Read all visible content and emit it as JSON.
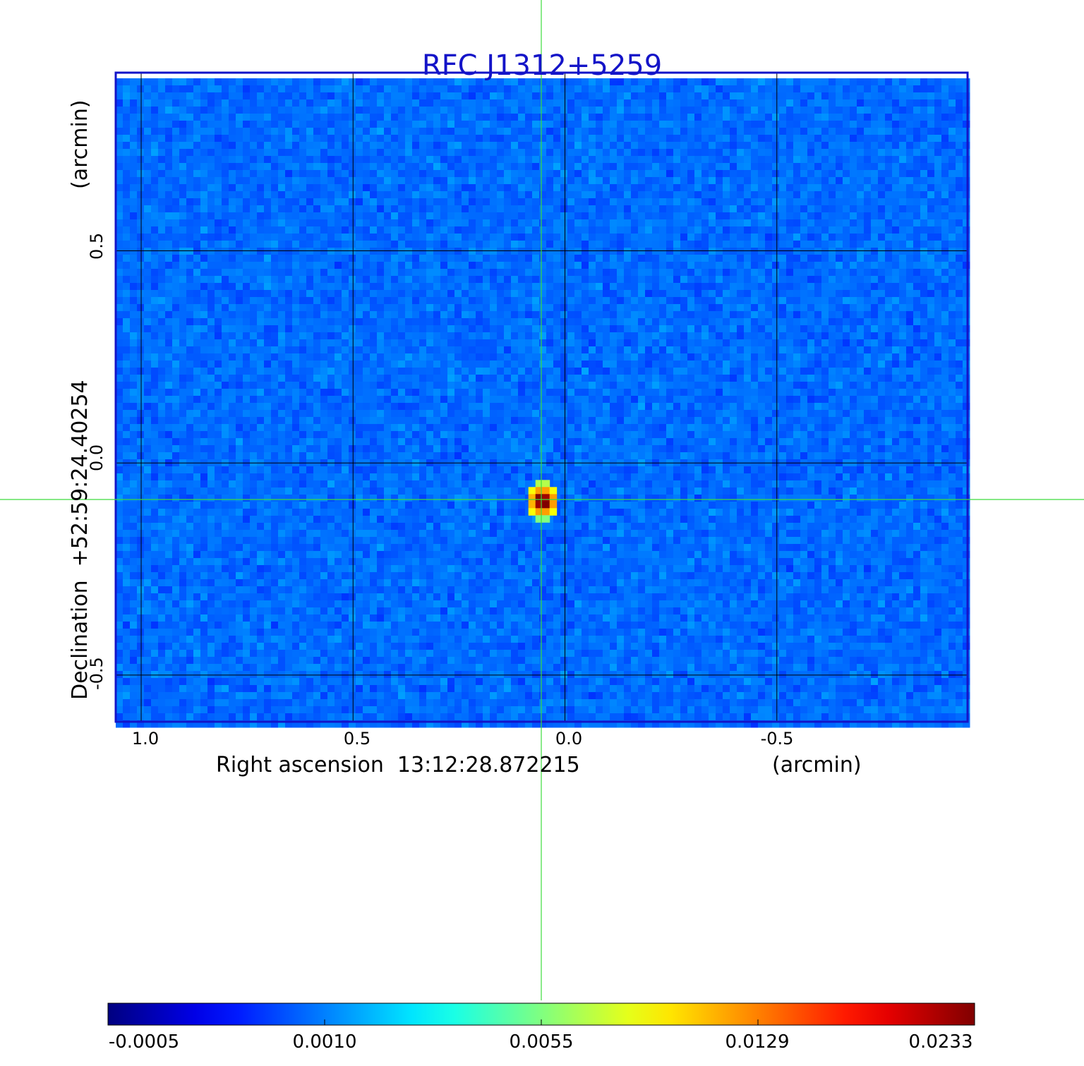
{
  "chart_data": {
    "type": "heatmap",
    "title": "RFC J1312+5259",
    "xlabel": "Right ascension  13:12:28.872215",
    "xunit": "(arcmin)",
    "ylabel": "Declination  +52:59:24.40254",
    "yunit": "(arcmin)",
    "x_ticks": [
      "1.0",
      "0.5",
      "0.0",
      "-0.5"
    ],
    "x_tick_values": [
      1.0,
      0.5,
      0.0,
      -0.5
    ],
    "y_ticks": [
      "0.5",
      "0.0",
      "-0.5"
    ],
    "y_tick_values": [
      0.5,
      0.0,
      -0.5
    ],
    "xlim": [
      1.06,
      -0.95
    ],
    "ylim": [
      -0.61,
      0.92
    ],
    "grid": true,
    "source": {
      "ra_offset_arcmin": 0.053,
      "dec_offset_arcmin": -0.09
    },
    "colorbar": {
      "colormap": "jet",
      "ticks": [
        "-0.0005",
        "0.0010",
        "0.0055",
        "0.0129",
        "0.0233"
      ],
      "range": [
        -0.0005,
        0.0233
      ]
    }
  },
  "colors": {
    "frame": "#1414c8",
    "crosshair": "#3cdc3c",
    "grid": "#000000"
  }
}
